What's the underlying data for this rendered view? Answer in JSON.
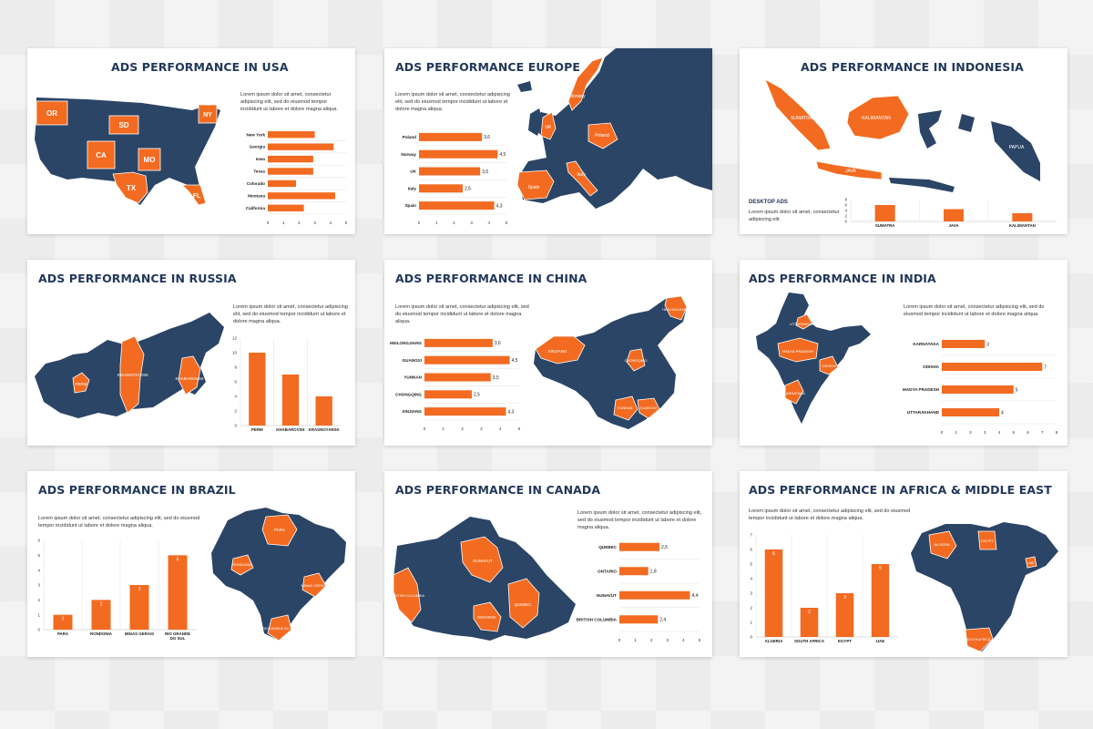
{
  "colors": {
    "navy": "#2b4566",
    "orange": "#f26b21",
    "title": "#22385a",
    "grid": "#e3e3e3"
  },
  "lorem": "Lorem ipsum dolor sit amet, consectetur adipiscing elit, sed do eiusmod tempor incididunt ut labore et dolore magna aliqua.",
  "slides": {
    "usa": {
      "title": "ADS PERFORMANCE IN USA",
      "map_labels": [
        "OR",
        "SD",
        "NY",
        "CA",
        "MO",
        "TX",
        "FL"
      ]
    },
    "europe": {
      "title": "ADS PERFORMANCE EUROPE",
      "map_labels": [
        "Norway",
        "Poland",
        "UK",
        "Spain",
        "Italy"
      ]
    },
    "indonesia": {
      "title": "ADS PERFORMANCE IN INDONESIA",
      "subhead": "DESKTOP ADS",
      "desc": "Lorem ipsum dolor sit amet, consectetur adipiscing elit.",
      "map_labels": [
        "SUMATRA",
        "KALIMANTAN",
        "PAPUA",
        "JAVA"
      ]
    },
    "russia": {
      "title": "ADS PERFORMANCE IN RUSSIA",
      "map_labels": [
        "PERM",
        "KRASNOYARSK",
        "KHABAROVSK"
      ]
    },
    "china": {
      "title": "ADS PERFORMANCE IN CHINA",
      "map_labels": [
        "XINJIANG",
        "HEILONGJIANG",
        "CHONGQING",
        "YUNNAN",
        "GUANGXI"
      ]
    },
    "india": {
      "title": "ADS PERFORMANCE IN INDIA",
      "map_labels": [
        "UTTARAKHAND",
        "MADYA PRADESH",
        "ODISHA",
        "KARNATAKA"
      ]
    },
    "brazil": {
      "title": "ADS PERFORMANCE IN BRAZIL",
      "map_labels": [
        "PARA",
        "RONDONIA",
        "MINAS GERAIS",
        "RIO GRANDE DO SUL"
      ]
    },
    "canada": {
      "title": "ADS PERFORMANCE IN CANADA",
      "map_labels": [
        "NUNAVUT",
        "BRITISH COLUMBIA",
        "ONTARIO",
        "QUEBEC"
      ]
    },
    "africa": {
      "title": "ADS PERFORMANCE IN AFRICA & MIDDLE EAST",
      "map_labels": [
        "ALGERIA",
        "EGYPT",
        "UAE",
        "SOUTH AFRICA"
      ]
    }
  },
  "chart_data": [
    {
      "id": "usa",
      "type": "bar",
      "orientation": "horizontal",
      "categories": [
        "New York",
        "Georgia",
        "Iowa",
        "Texas",
        "Colorado",
        "Montana",
        "California"
      ],
      "values": [
        3.0,
        4.2,
        2.9,
        2.9,
        1.8,
        4.3,
        2.3
      ],
      "xlim": [
        0,
        5
      ],
      "xticks": [
        "0",
        "1",
        "2",
        "3",
        "4",
        "5"
      ],
      "show_value_labels": false
    },
    {
      "id": "europe",
      "type": "bar",
      "orientation": "horizontal",
      "categories": [
        "Poland",
        "Norway",
        "UK",
        "Italy",
        "Spain"
      ],
      "values": [
        3.6,
        4.5,
        3.5,
        2.5,
        4.3
      ],
      "value_labels": [
        "3,6",
        "4,5",
        "3,5",
        "2,5",
        "4,3"
      ],
      "xlim": [
        0,
        5
      ],
      "xticks": [
        "0",
        "1",
        "2",
        "3",
        "4",
        "5"
      ]
    },
    {
      "id": "indonesia",
      "type": "bar",
      "orientation": "vertical",
      "categories": [
        "SUMATRA",
        "JAVA",
        "KALIMANTAN"
      ],
      "values": [
        6,
        4.5,
        3
      ],
      "ylim": [
        0,
        8
      ],
      "yticks": [
        "0",
        "2",
        "4",
        "6",
        "8"
      ]
    },
    {
      "id": "russia",
      "type": "bar",
      "orientation": "vertical",
      "categories": [
        "PERM",
        "KHABAROVSK",
        "KRASNOYARSK"
      ],
      "values": [
        10,
        7,
        4
      ],
      "ylim": [
        0,
        12
      ],
      "yticks": [
        "0",
        "2",
        "4",
        "6",
        "8",
        "10",
        "12"
      ]
    },
    {
      "id": "china",
      "type": "bar",
      "orientation": "horizontal",
      "categories": [
        "HEILONGJIANG",
        "GUANGXI",
        "YUNNAN",
        "CHONGQING",
        "XINJIANG"
      ],
      "values": [
        3.6,
        4.5,
        3.5,
        2.5,
        4.3
      ],
      "value_labels": [
        "3,6",
        "4,5",
        "3,5",
        "2,5",
        "4,3"
      ],
      "xlim": [
        0,
        5
      ],
      "xticks": [
        "0",
        "1",
        "2",
        "3",
        "4",
        "5"
      ]
    },
    {
      "id": "india",
      "type": "bar",
      "orientation": "horizontal",
      "categories": [
        "KARNATAKA",
        "ODISHA",
        "MADYA PRADESH",
        "UTTARAKHAND"
      ],
      "values": [
        3,
        7,
        5,
        4
      ],
      "value_labels": [
        "3",
        "7",
        "5",
        "4"
      ],
      "xlim": [
        0,
        8
      ],
      "xticks": [
        "0",
        "1",
        "2",
        "3",
        "4",
        "5",
        "6",
        "7",
        "8"
      ]
    },
    {
      "id": "brazil",
      "type": "bar",
      "orientation": "vertical",
      "categories": [
        "PARA",
        "RONDONIA",
        "MINAS GERAIS",
        "RIO GRANDE DO SUL"
      ],
      "values": [
        1,
        2,
        3,
        5
      ],
      "value_labels": [
        "1",
        "2",
        "3",
        "5"
      ],
      "ylim": [
        0,
        6
      ],
      "yticks": [
        "0",
        "1",
        "2",
        "3",
        "4",
        "5",
        "6"
      ]
    },
    {
      "id": "canada",
      "type": "bar",
      "orientation": "horizontal",
      "categories": [
        "QUEBEC",
        "ONTARIO",
        "NUNAVUT",
        "BRITISH COLUMBIA"
      ],
      "values": [
        2.5,
        1.8,
        4.4,
        2.4
      ],
      "value_labels": [
        "2,5",
        "1,8",
        "4,4",
        "2,4"
      ],
      "xlim": [
        0,
        5
      ],
      "xticks": [
        "0",
        "1",
        "2",
        "3",
        "4",
        "5"
      ]
    },
    {
      "id": "africa",
      "type": "bar",
      "orientation": "vertical",
      "categories": [
        "ALGERIA",
        "SOUTH AFRICA",
        "EGYPT",
        "UAE"
      ],
      "values": [
        6,
        2,
        3,
        5
      ],
      "value_labels": [
        "6",
        "2",
        "3",
        "5"
      ],
      "ylim": [
        0,
        7
      ],
      "yticks": [
        "0",
        "1",
        "2",
        "3",
        "4",
        "5",
        "6",
        "7"
      ]
    }
  ]
}
